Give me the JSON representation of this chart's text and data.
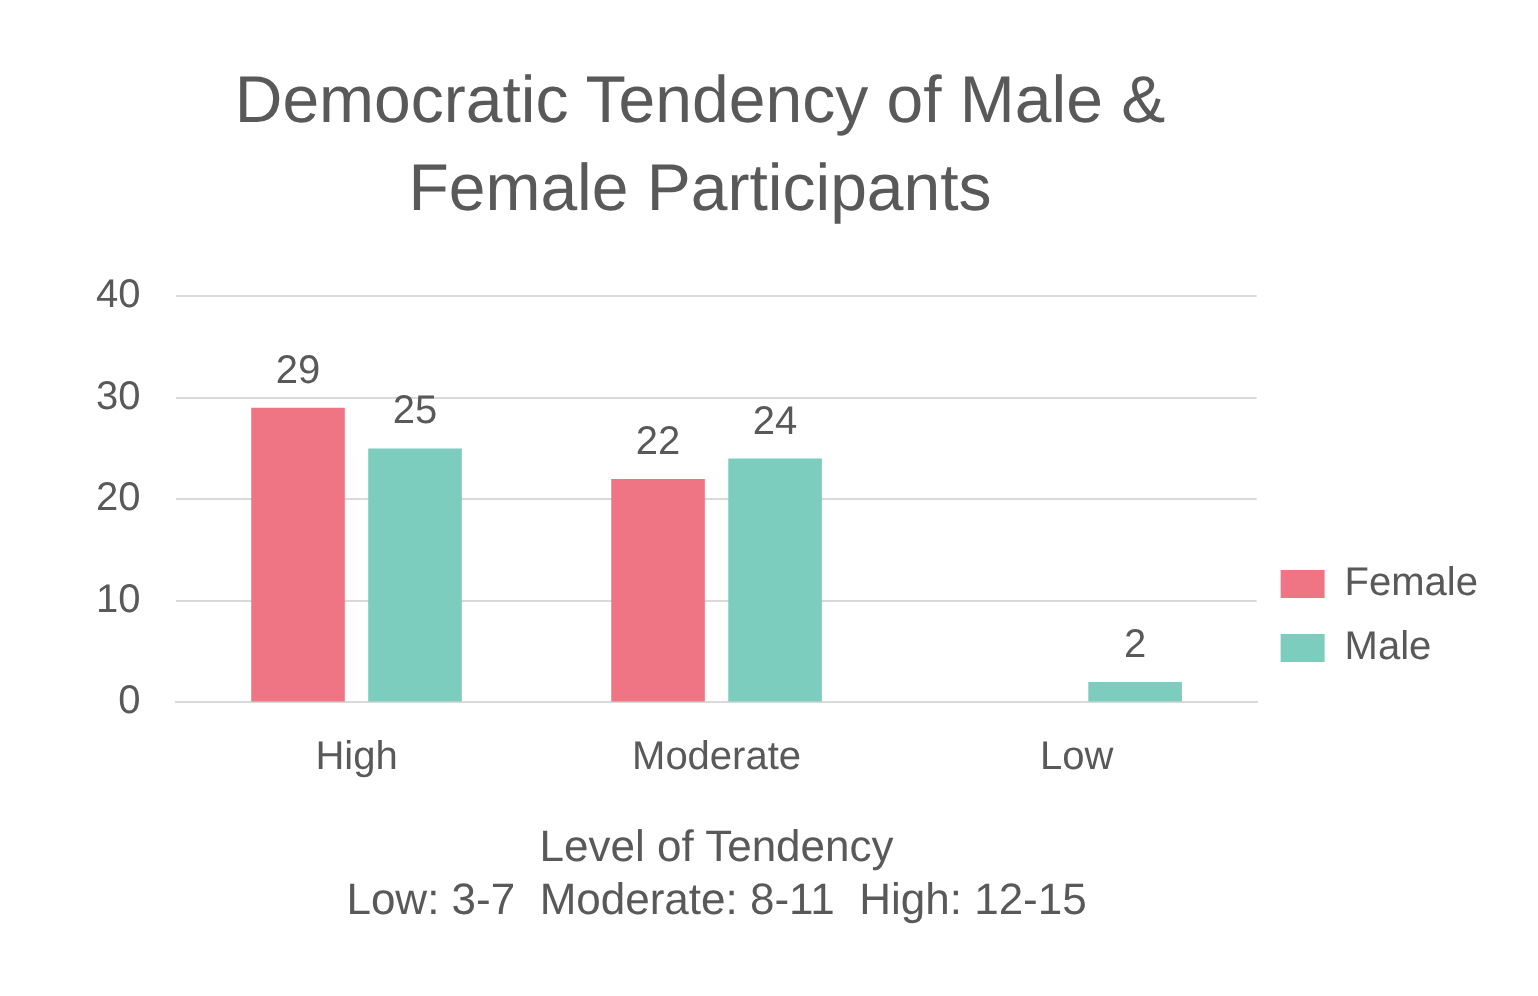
{
  "chart_data": {
    "type": "bar",
    "title": "Democratic Tendency of Male & Female Participants",
    "xlabel": "Level of Tendency",
    "annotations": [
      "Low: 3-7  Moderate: 8-11  High: 12-15"
    ],
    "categories": [
      "High",
      "Moderate",
      "Low"
    ],
    "series": [
      {
        "name": "Female",
        "color": "#f07584",
        "values": [
          29,
          22,
          null
        ]
      },
      {
        "name": "Male",
        "color": "#7ccdbd",
        "values": [
          25,
          24,
          2
        ]
      }
    ],
    "ylim": [
      0,
      40
    ],
    "yticks": [
      0,
      10,
      20,
      30,
      40
    ],
    "grid": "y",
    "legend": "right",
    "data_labels": true
  }
}
